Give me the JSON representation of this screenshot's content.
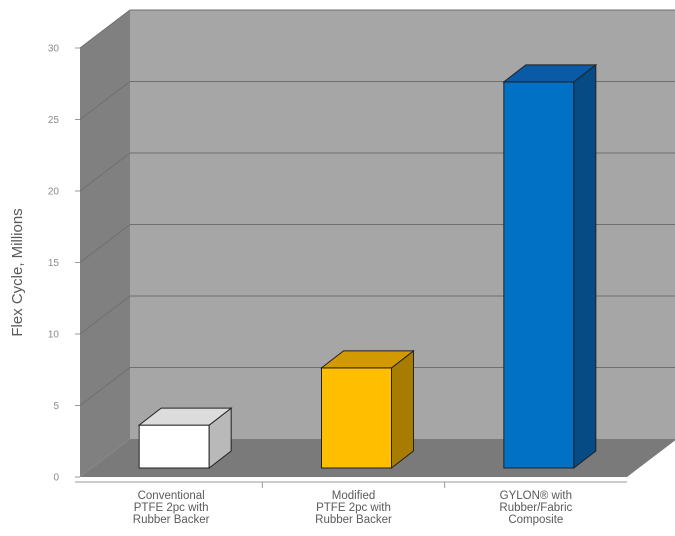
{
  "chart_data": {
    "type": "bar",
    "ylabel": "Flex Cycle, Millions",
    "xlabel": "",
    "ylim": [
      0,
      30
    ],
    "yticks": [
      "0",
      "5",
      "10",
      "15",
      "20",
      "25",
      "30"
    ],
    "grid": true,
    "categories": [
      {
        "lines": [
          "Conventional",
          "PTFE 2pc with",
          "Rubber Backer"
        ],
        "value": 3,
        "colors": {
          "front": "#ffffff",
          "top": "#dcdcdc",
          "side": "#b9b9b9"
        }
      },
      {
        "lines": [
          "Modified",
          "PTFE 2pc with",
          "Rubber Backer"
        ],
        "value": 7,
        "colors": {
          "front": "#ffbf00",
          "top": "#d29a00",
          "side": "#a87c00"
        }
      },
      {
        "lines": [
          "GYLON® with",
          "Rubber/Fabric",
          "Composite"
        ],
        "value": 27,
        "colors": {
          "front": "#0071c5",
          "top": "#0a5aa6",
          "side": "#074b85"
        }
      }
    ],
    "style": {
      "back_wall": "#a6a6a6",
      "side_wall": "#808080",
      "floor": "#7a7a7a",
      "grid_line": "#6f6f6f",
      "axis_line": "#9a9a9a"
    }
  }
}
